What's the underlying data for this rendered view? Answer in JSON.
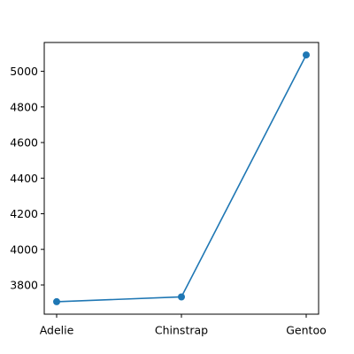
{
  "chart_data": {
    "type": "line",
    "title": "",
    "xlabel": "",
    "ylabel": "",
    "categories": [
      "Adelie",
      "Chinstrap",
      "Gentoo"
    ],
    "series": [
      {
        "values": [
          3706,
          3733,
          5092
        ],
        "color": "#1f77b4",
        "marker": "circle"
      }
    ],
    "ylim": [
      3636,
      5162
    ],
    "yticks": [
      3800,
      4000,
      4200,
      4400,
      4600,
      4800,
      5000
    ],
    "ytick_labels": [
      "3800",
      "4000",
      "4200",
      "4400",
      "4600",
      "4800",
      "5000"
    ],
    "grid": false,
    "legend": "none"
  }
}
